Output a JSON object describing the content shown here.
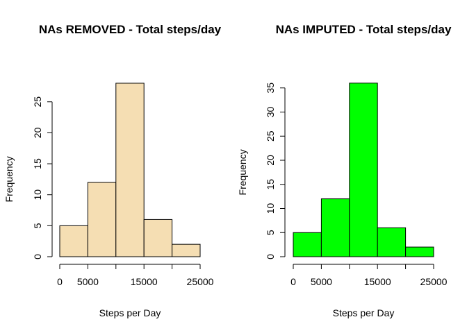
{
  "chart_data": [
    {
      "type": "bar",
      "title": "NAs REMOVED - Total steps/day",
      "xlabel": "Steps per Day",
      "ylabel": "Frequency",
      "bins": [
        [
          0,
          5000
        ],
        [
          5000,
          10000
        ],
        [
          10000,
          15000
        ],
        [
          15000,
          20000
        ],
        [
          20000,
          25000
        ]
      ],
      "values": [
        5,
        12,
        28,
        6,
        2
      ],
      "xticks": [
        0,
        5000,
        15000,
        25000
      ],
      "xlim": [
        0,
        25000
      ],
      "yticks": [
        0,
        5,
        10,
        15,
        20,
        25
      ],
      "ylim": [
        0,
        28
      ],
      "bar_color": "#f5deb3",
      "grid": false
    },
    {
      "type": "bar",
      "title": "NAs IMPUTED - Total steps/day",
      "xlabel": "Steps per Day",
      "ylabel": "Frequency",
      "bins": [
        [
          0,
          5000
        ],
        [
          5000,
          10000
        ],
        [
          10000,
          15000
        ],
        [
          15000,
          20000
        ],
        [
          20000,
          25000
        ]
      ],
      "values": [
        5,
        12,
        36,
        6,
        2
      ],
      "xticks": [
        0,
        5000,
        15000,
        25000
      ],
      "xlim": [
        0,
        25000
      ],
      "yticks": [
        0,
        5,
        10,
        15,
        20,
        25,
        30,
        35
      ],
      "ylim": [
        0,
        36
      ],
      "bar_color": "#00ff00",
      "grid": false
    }
  ]
}
